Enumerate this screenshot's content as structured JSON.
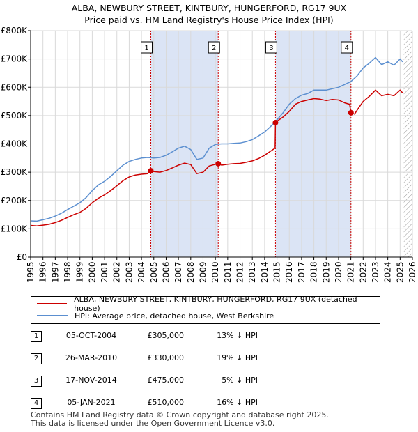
{
  "chart_data": {
    "type": "line",
    "title": "ALBA, NEWBURY STREET, KINTBURY, HUNGERFORD, RG17 9UX",
    "subtitle": "Price paid vs. HM Land Registry's House Price Index (HPI)",
    "xlabel": "",
    "ylabel": "",
    "xlim": [
      1995,
      2026
    ],
    "ylim": [
      0,
      800000
    ],
    "y_ticks": [
      0,
      100000,
      200000,
      300000,
      400000,
      500000,
      600000,
      700000,
      800000
    ],
    "y_tick_labels": [
      "£0",
      "£100K",
      "£200K",
      "£300K",
      "£400K",
      "£500K",
      "£600K",
      "£700K",
      "£800K"
    ],
    "x_ticks": [
      1995,
      1996,
      1997,
      1998,
      1999,
      2000,
      2001,
      2002,
      2003,
      2004,
      2005,
      2006,
      2007,
      2008,
      2009,
      2010,
      2011,
      2012,
      2013,
      2014,
      2015,
      2016,
      2017,
      2018,
      2019,
      2020,
      2021,
      2022,
      2023,
      2024,
      2025,
      2026
    ],
    "x_tick_labels": [
      "1995",
      "1996",
      "1997",
      "1998",
      "1999",
      "2000",
      "2001",
      "2002",
      "2003",
      "2004",
      "2005",
      "2006",
      "2007",
      "2008",
      "2009",
      "2010",
      "2011",
      "2012",
      "2013",
      "2014",
      "2015",
      "2016",
      "2017",
      "2018",
      "2019",
      "2020",
      "2021",
      "2022",
      "2023",
      "2024",
      "2025",
      "2026"
    ],
    "grid": true,
    "series": [
      {
        "name": "ALBA, NEWBURY STREET, KINTBURY, HUNGERFORD, RG17 9UX (detached house)",
        "color": "#cc0000",
        "x": [
          1995.0,
          1995.5,
          1996.0,
          1996.5,
          1997.0,
          1997.5,
          1998.0,
          1998.5,
          1999.0,
          1999.5,
          2000.0,
          2000.5,
          2001.0,
          2001.5,
          2002.0,
          2002.5,
          2003.0,
          2003.5,
          2004.0,
          2004.5,
          2004.76,
          2005.0,
          2005.5,
          2006.0,
          2006.5,
          2007.0,
          2007.5,
          2008.0,
          2008.5,
          2009.0,
          2009.5,
          2010.0,
          2010.23,
          2010.5,
          2011.0,
          2011.5,
          2012.0,
          2012.5,
          2013.0,
          2013.5,
          2014.0,
          2014.5,
          2014.85,
          2014.88,
          2015.0,
          2015.5,
          2016.0,
          2016.5,
          2017.0,
          2017.5,
          2018.0,
          2018.5,
          2019.0,
          2019.5,
          2020.0,
          2020.5,
          2020.9,
          2021.01,
          2021.3,
          2021.6,
          2022.0,
          2022.5,
          2023.0,
          2023.5,
          2024.0,
          2024.5,
          2025.0,
          2025.2
        ],
        "y": [
          112000,
          110000,
          113000,
          116000,
          122000,
          130000,
          140000,
          150000,
          158000,
          172000,
          192000,
          208000,
          220000,
          235000,
          252000,
          270000,
          283000,
          290000,
          293000,
          295000,
          305000,
          302000,
          300000,
          306000,
          315000,
          325000,
          332000,
          327000,
          295000,
          300000,
          322000,
          328000,
          330000,
          325000,
          328000,
          330000,
          331000,
          335000,
          340000,
          348000,
          360000,
          375000,
          385000,
          475000,
          480000,
          495000,
          515000,
          540000,
          550000,
          555000,
          560000,
          558000,
          553000,
          557000,
          555000,
          545000,
          540000,
          510000,
          505000,
          525000,
          550000,
          568000,
          590000,
          570000,
          575000,
          570000,
          590000,
          580000
        ]
      },
      {
        "name": "HPI: Average price, detached house, West Berkshire",
        "color": "#5b8fd0",
        "x": [
          1995.0,
          1995.5,
          1996.0,
          1996.5,
          1997.0,
          1997.5,
          1998.0,
          1998.5,
          1999.0,
          1999.5,
          2000.0,
          2000.5,
          2001.0,
          2001.5,
          2002.0,
          2002.5,
          2003.0,
          2003.5,
          2004.0,
          2004.5,
          2005.0,
          2005.5,
          2006.0,
          2006.5,
          2007.0,
          2007.5,
          2008.0,
          2008.5,
          2009.0,
          2009.5,
          2010.0,
          2010.5,
          2011.0,
          2011.5,
          2012.0,
          2012.5,
          2013.0,
          2013.5,
          2014.0,
          2014.5,
          2015.0,
          2015.5,
          2016.0,
          2016.5,
          2017.0,
          2017.5,
          2018.0,
          2018.5,
          2019.0,
          2019.5,
          2020.0,
          2020.5,
          2021.0,
          2021.5,
          2022.0,
          2022.5,
          2023.0,
          2023.5,
          2024.0,
          2024.5,
          2025.0,
          2025.2
        ],
        "y": [
          128000,
          127000,
          132000,
          137000,
          145000,
          155000,
          168000,
          180000,
          192000,
          210000,
          235000,
          255000,
          268000,
          285000,
          305000,
          325000,
          338000,
          345000,
          350000,
          352000,
          350000,
          352000,
          360000,
          372000,
          385000,
          392000,
          380000,
          345000,
          350000,
          385000,
          398000,
          400000,
          400000,
          402000,
          403000,
          408000,
          415000,
          428000,
          442000,
          462000,
          485000,
          510000,
          540000,
          560000,
          572000,
          578000,
          590000,
          590000,
          590000,
          595000,
          600000,
          610000,
          620000,
          640000,
          668000,
          685000,
          705000,
          680000,
          690000,
          678000,
          700000,
          690000
        ]
      }
    ],
    "markers": [
      {
        "label": "1",
        "x": 2004.76,
        "y": 305000
      },
      {
        "label": "2",
        "x": 2010.23,
        "y": 330000
      },
      {
        "label": "3",
        "x": 2014.88,
        "y": 475000
      },
      {
        "label": "4",
        "x": 2021.01,
        "y": 510000
      }
    ],
    "shaded_regions": [
      [
        2004.76,
        2010.23
      ],
      [
        2014.88,
        2021.01
      ]
    ],
    "hatched_after": 2025.3,
    "colors": {
      "property": "#cc0000",
      "hpi": "#5b8fd0",
      "shade": "#dbe4f5",
      "vline": "#cc0000",
      "grid": "#d9d9d9"
    }
  },
  "legend": {
    "property_label": "ALBA, NEWBURY STREET, KINTBURY, HUNGERFORD, RG17 9UX (detached house)",
    "hpi_label": "HPI: Average price, detached house, West Berkshire"
  },
  "transactions": [
    {
      "num": "1",
      "date": "05-OCT-2004",
      "price": "£305,000",
      "hpi": "13% ↓ HPI"
    },
    {
      "num": "2",
      "date": "26-MAR-2010",
      "price": "£330,000",
      "hpi": "19% ↓ HPI"
    },
    {
      "num": "3",
      "date": "17-NOV-2014",
      "price": "£475,000",
      "hpi": "5% ↓ HPI"
    },
    {
      "num": "4",
      "date": "05-JAN-2021",
      "price": "£510,000",
      "hpi": "16% ↓ HPI"
    }
  ],
  "footer": {
    "line1": "Contains HM Land Registry data © Crown copyright and database right 2025.",
    "line2": "This data is licensed under the Open Government Licence v3.0."
  }
}
